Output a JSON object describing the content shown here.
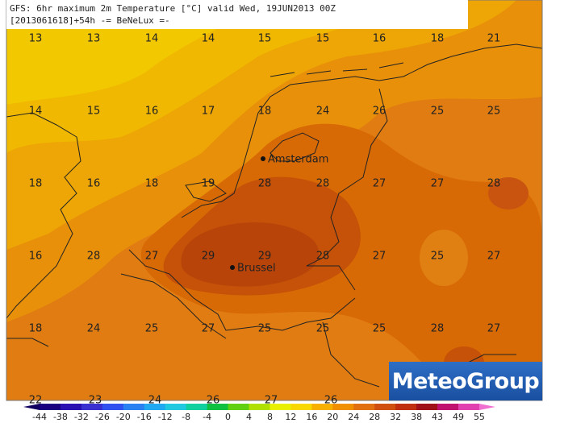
{
  "header": {
    "line1": "GFS: 6hr maximum 2m Temperature [°C] valid Wed, 19JUN2013 00Z",
    "line2": "[2013061618]+54h -= BeNeLux =-"
  },
  "grid": {
    "rows": [
      [
        13,
        13,
        14,
        14,
        15,
        15,
        16,
        18,
        21
      ],
      [
        14,
        15,
        16,
        17,
        18,
        24,
        26,
        25,
        25
      ],
      [
        18,
        16,
        18,
        19,
        28,
        28,
        27,
        27,
        28
      ],
      [
        16,
        28,
        27,
        29,
        29,
        28,
        27,
        25,
        27
      ],
      [
        18,
        24,
        25,
        27,
        25,
        25,
        25,
        28,
        27
      ],
      [
        22,
        23,
        24,
        26,
        27,
        26
      ]
    ]
  },
  "cities": [
    {
      "name": "Amsterdam"
    },
    {
      "name": "Brussel"
    }
  ],
  "legend": {
    "labels": [
      -44,
      -38,
      -32,
      -26,
      -20,
      -16,
      -12,
      -8,
      -4,
      0,
      4,
      8,
      12,
      16,
      20,
      24,
      28,
      32,
      38,
      43,
      49,
      55
    ]
  },
  "logo": "MeteoGroup"
}
